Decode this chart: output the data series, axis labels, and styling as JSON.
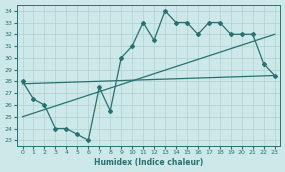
{
  "xlabel": "Humidex (Indice chaleur)",
  "bg_color": "#cce8e8",
  "line_color": "#2a7070",
  "grid_color": "#b0d0d0",
  "xlim": [
    -0.5,
    23.5
  ],
  "ylim": [
    22.5,
    34.5
  ],
  "xticks": [
    0,
    1,
    2,
    3,
    4,
    5,
    6,
    7,
    8,
    9,
    10,
    11,
    12,
    13,
    14,
    15,
    16,
    17,
    18,
    19,
    20,
    21,
    22,
    23
  ],
  "yticks": [
    23,
    24,
    25,
    26,
    27,
    28,
    29,
    30,
    31,
    32,
    33,
    34
  ],
  "main_x": [
    0,
    1,
    2,
    3,
    4,
    5,
    6,
    7,
    8,
    9,
    10,
    11,
    12,
    13,
    14,
    15,
    16,
    17,
    18,
    19,
    20,
    21,
    22,
    23
  ],
  "main_y": [
    28,
    26.5,
    26,
    24,
    24,
    23.5,
    23,
    27.5,
    25.5,
    30,
    31,
    33,
    31.5,
    34,
    33,
    33,
    32,
    33,
    33,
    32,
    32,
    32,
    29.5,
    28.5
  ],
  "trend1_x": [
    0,
    23
  ],
  "trend1_y": [
    27.8,
    28.5
  ],
  "trend2_x": [
    0,
    23
  ],
  "trend2_y": [
    25.0,
    32.0
  ]
}
